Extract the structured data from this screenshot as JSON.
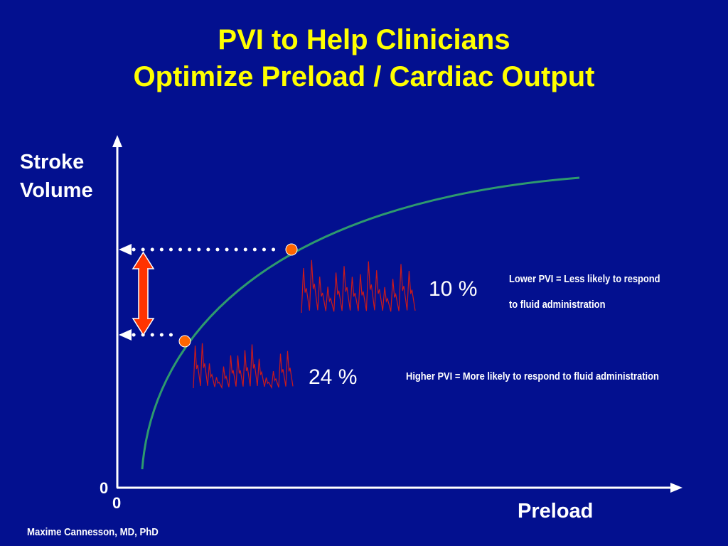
{
  "title": {
    "line1": "PVI to Help Clinicians",
    "line2": "Optimize Preload / Cardiac Output"
  },
  "axes": {
    "ylabel_line1": "Stroke",
    "ylabel_line2": "Volume",
    "xlabel": "Preload",
    "y_origin": "0",
    "x_origin": "0"
  },
  "points": {
    "upper": {
      "pvi": "10 %",
      "note_line1": "Lower PVI = Less likely to respond",
      "note_line2": "to fluid administration"
    },
    "lower": {
      "pvi": "24 %",
      "note": "Higher PVI = More likely to respond to fluid administration"
    }
  },
  "author": "Maxime Cannesson, MD, PhD",
  "colors": {
    "background": "#03108f",
    "title": "#ffff00",
    "curve": "#2e9a6e",
    "marker": "#ff6600",
    "arrow": "#ff3300",
    "waveform": "#cc1a1a"
  }
}
